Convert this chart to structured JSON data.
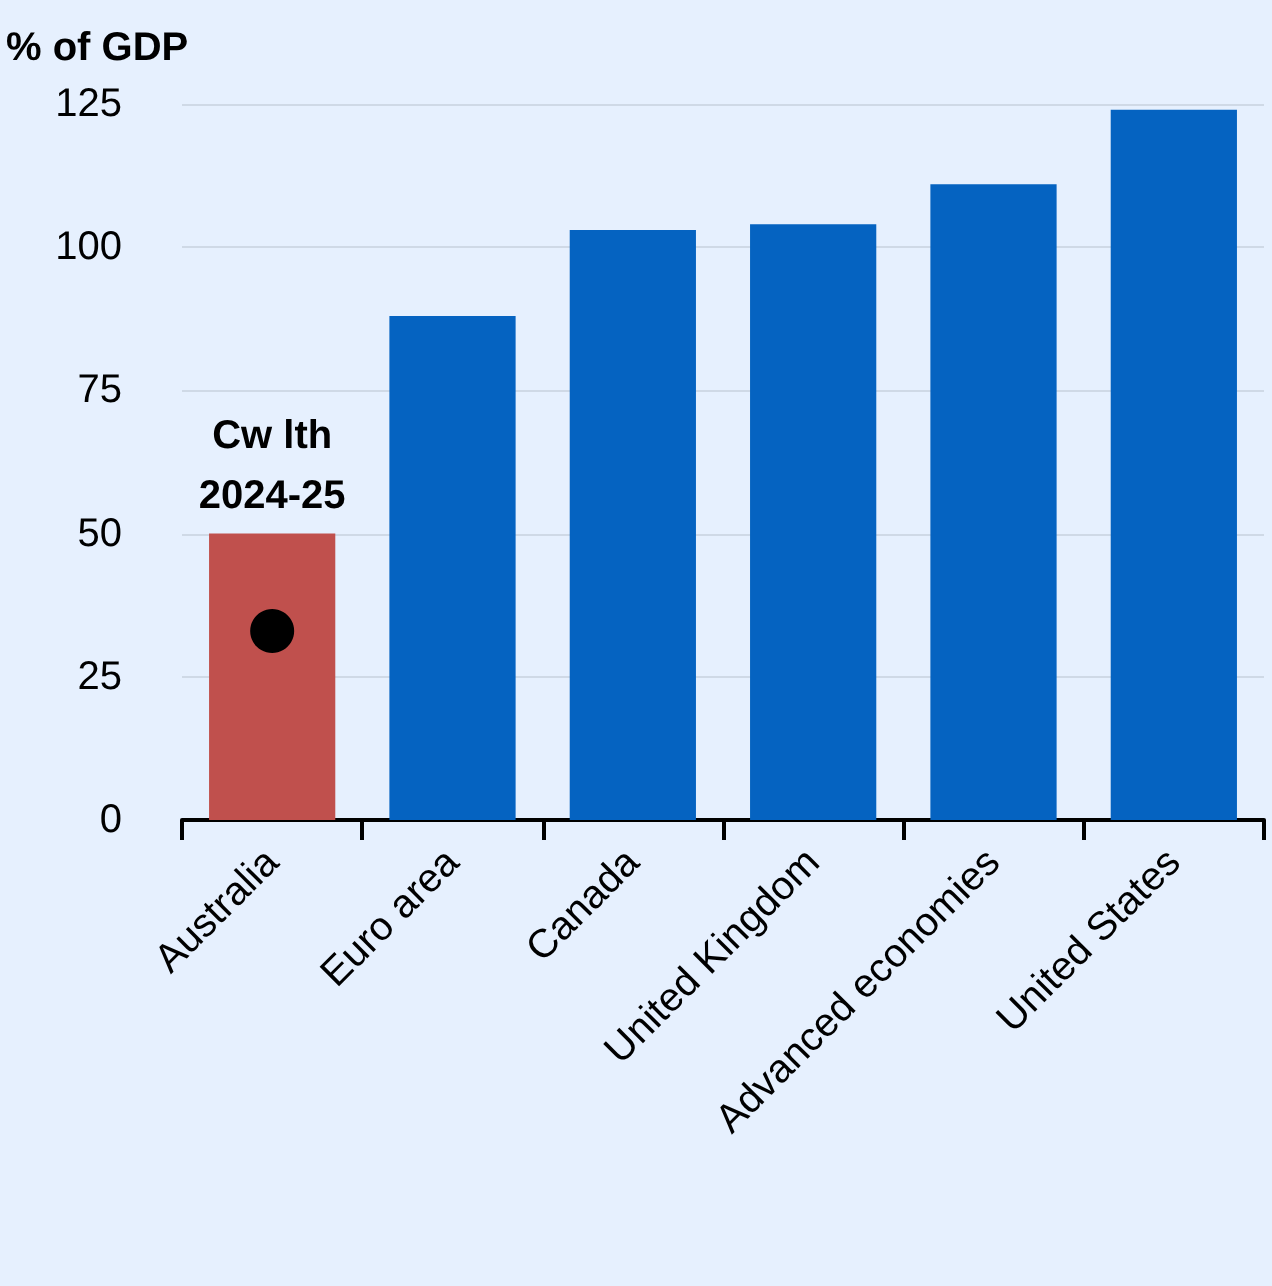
{
  "chart_data": {
    "type": "bar",
    "ylabel": "% of GDP",
    "categories": [
      "Australia",
      "Euro area",
      "Canada",
      "United Kingdom",
      "Advanced economies",
      "United States"
    ],
    "series": [
      {
        "values": [
          50,
          88,
          103,
          104,
          111,
          124
        ],
        "colors": [
          "#c0504d",
          "#0563c1",
          "#0563c1",
          "#0563c1",
          "#0563c1",
          "#0563c1"
        ]
      },
      {
        "type": "scatter",
        "x": [
          "Australia"
        ],
        "values": [
          33
        ],
        "color": "#000000"
      }
    ],
    "ylim": [
      0,
      125
    ],
    "yticks": [
      0,
      25,
      50,
      75,
      100,
      125
    ],
    "grid": "y",
    "marker": "circle",
    "annotations": [
      {
        "text": "Cw lth\n2024-25",
        "x": "Australia",
        "y": 50
      }
    ]
  }
}
